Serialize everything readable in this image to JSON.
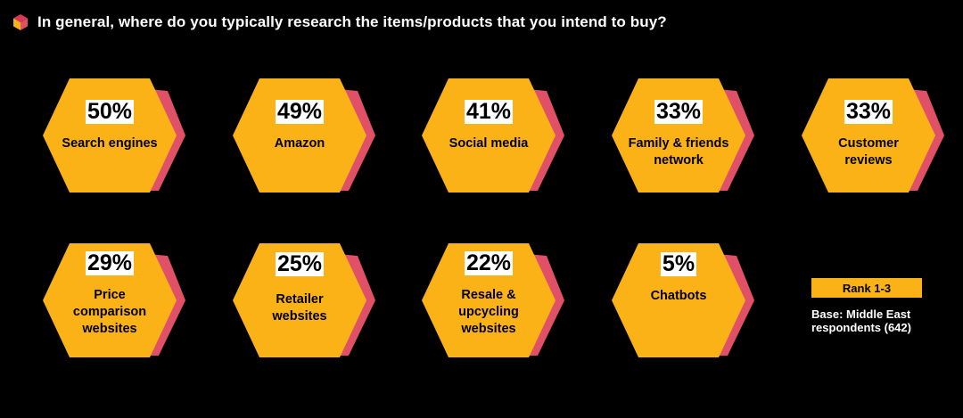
{
  "header": {
    "title": "In general, where do you typically research the items/products that you intend to buy?",
    "icon": "cube-icon"
  },
  "colors": {
    "background": "#000000",
    "hexagon": "#fbb216",
    "shadow": "#e05067",
    "icon_front": "#fbb216",
    "icon_side": "#e05067",
    "icon_top": "#d93954"
  },
  "chart_data": {
    "type": "bar",
    "unit": "%",
    "categories": [
      "Search engines",
      "Amazon",
      "Social media",
      "Family & friends network",
      "Customer reviews",
      "Price comparison websites",
      "Retailer websites",
      "Resale & upcycling websites",
      "Chatbots"
    ],
    "values": [
      50,
      49,
      41,
      33,
      33,
      29,
      25,
      22,
      5
    ],
    "items": [
      {
        "value_label": "50%",
        "label_lines": [
          "Search engines"
        ]
      },
      {
        "value_label": "49%",
        "label_lines": [
          "Amazon"
        ]
      },
      {
        "value_label": "41%",
        "label_lines": [
          "Social media"
        ]
      },
      {
        "value_label": "33%",
        "label_lines": [
          "Family & friends",
          "network"
        ]
      },
      {
        "value_label": "33%",
        "label_lines": [
          "Customer",
          "reviews"
        ]
      },
      {
        "value_label": "29%",
        "label_lines": [
          "Price",
          "comparison",
          "websites"
        ]
      },
      {
        "value_label": "25%",
        "label_lines": [
          "Retailer",
          "websites"
        ]
      },
      {
        "value_label": "22%",
        "label_lines": [
          "Resale &",
          "upcycling",
          "websites"
        ]
      },
      {
        "value_label": "5%",
        "label_lines": [
          "Chatbots"
        ]
      }
    ]
  },
  "legend": {
    "label": "Rank 1-3"
  },
  "base_note": {
    "lines": [
      "Base: Middle East",
      "respondents (642)"
    ]
  }
}
